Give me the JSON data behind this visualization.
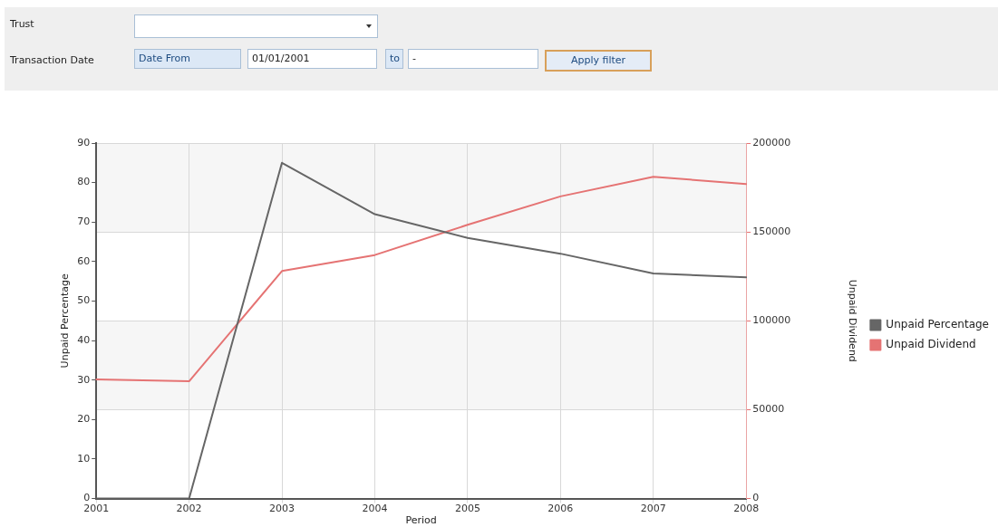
{
  "chart_data": [
    {
      "type": "other",
      "annotations": [
        "Trust",
        "Transaction Date",
        "Date From",
        "01/01/2001",
        "to",
        "-",
        "Apply filter"
      ]
    },
    {
      "type": "line",
      "xlabel": "Period",
      "ylabel": "Unpaid Percentage",
      "y2label": "Unpaid Dividend",
      "categories": [
        "2001",
        "2002",
        "2003",
        "2004",
        "2005",
        "2006",
        "2007",
        "2008"
      ],
      "series": [
        {
          "name": "Unpaid Percentage",
          "color": "#666666",
          "values": [
            0,
            0,
            85,
            72,
            66,
            62,
            57,
            56
          ]
        },
        {
          "name": "Unpaid Dividend",
          "color": "#e57373",
          "axis": "y2",
          "values": [
            67000,
            66000,
            128000,
            137000,
            154000,
            170000,
            181000,
            177000
          ]
        }
      ],
      "ylim": [
        0,
        90
      ],
      "yticks": [
        0,
        10,
        20,
        30,
        40,
        50,
        60,
        70,
        80,
        90
      ],
      "y2lim": [
        0,
        200000
      ],
      "y2ticks": [
        0,
        50000,
        100000,
        150000,
        200000
      ],
      "grid": true,
      "legend": "right",
      "marker": "none",
      "line_style": "solid"
    }
  ]
}
